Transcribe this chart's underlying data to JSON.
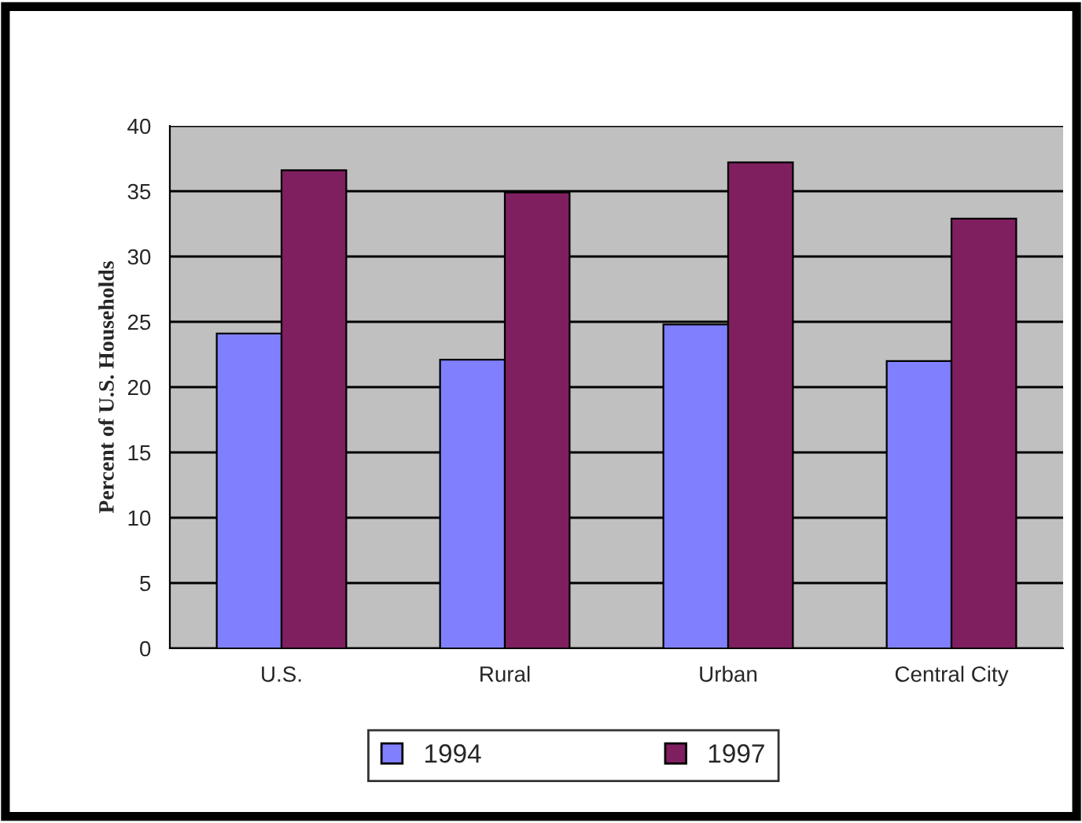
{
  "chart_data": {
    "type": "bar",
    "ylabel": "Percent of U.S. Households",
    "categories": [
      "U.S.",
      "Rural",
      "Urban",
      "Central City"
    ],
    "series": [
      {
        "name": "1994",
        "color": "#8080ff",
        "values": [
          24.1,
          22.1,
          24.8,
          22.0
        ]
      },
      {
        "name": "1997",
        "color": "#7f1f5f",
        "values": [
          36.6,
          34.9,
          37.2,
          32.9
        ]
      }
    ],
    "ylim": [
      0,
      40
    ],
    "yticks": [
      0,
      5,
      10,
      15,
      20,
      25,
      30,
      35,
      40
    ],
    "grid": "y",
    "legend": "bottom"
  }
}
